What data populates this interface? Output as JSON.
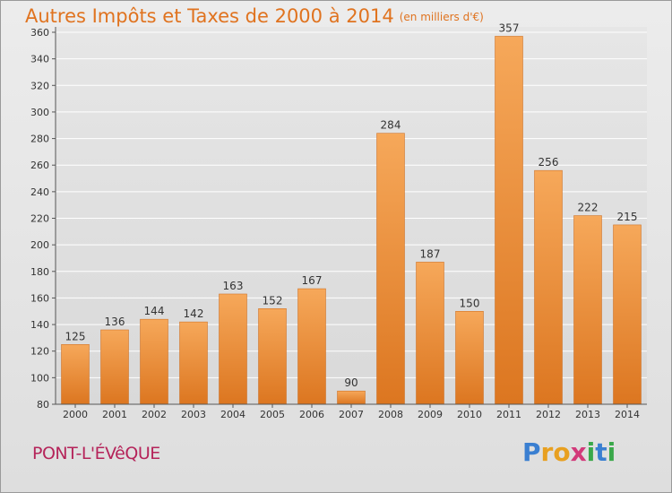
{
  "header": {
    "title": "Autres Impôts et Taxes de 2000 à 2014",
    "unit": "(en milliers d'€)"
  },
  "footer": {
    "place": "PONT-L'ÉVêQUE",
    "logo_letters": [
      "P",
      "r",
      "o",
      "x",
      "i",
      "t",
      "i"
    ],
    "logo_colors": [
      "#3a7fd1",
      "#e8a020",
      "#e8a020",
      "#d23a7a",
      "#3aa84a",
      "#3a7fd1",
      "#3aa84a"
    ]
  },
  "colors": {
    "bar_top": "#f6a85a",
    "bar_bottom": "#dc7620",
    "grid": "#ffffff",
    "axis_text": "#333333"
  },
  "chart_data": {
    "type": "bar",
    "categories": [
      "2000",
      "2001",
      "2002",
      "2003",
      "2004",
      "2005",
      "2006",
      "2007",
      "2008",
      "2009",
      "2010",
      "2011",
      "2012",
      "2013",
      "2014"
    ],
    "values": [
      125,
      136,
      144,
      142,
      163,
      152,
      167,
      90,
      284,
      187,
      150,
      357,
      256,
      222,
      215
    ],
    "title": "Autres Impôts et Taxes de 2000 à 2014",
    "ylim": [
      80,
      360
    ],
    "yticks": [
      80,
      100,
      120,
      140,
      160,
      180,
      200,
      220,
      240,
      260,
      280,
      300,
      320,
      340,
      360
    ],
    "grid": true,
    "data_labels": true
  }
}
